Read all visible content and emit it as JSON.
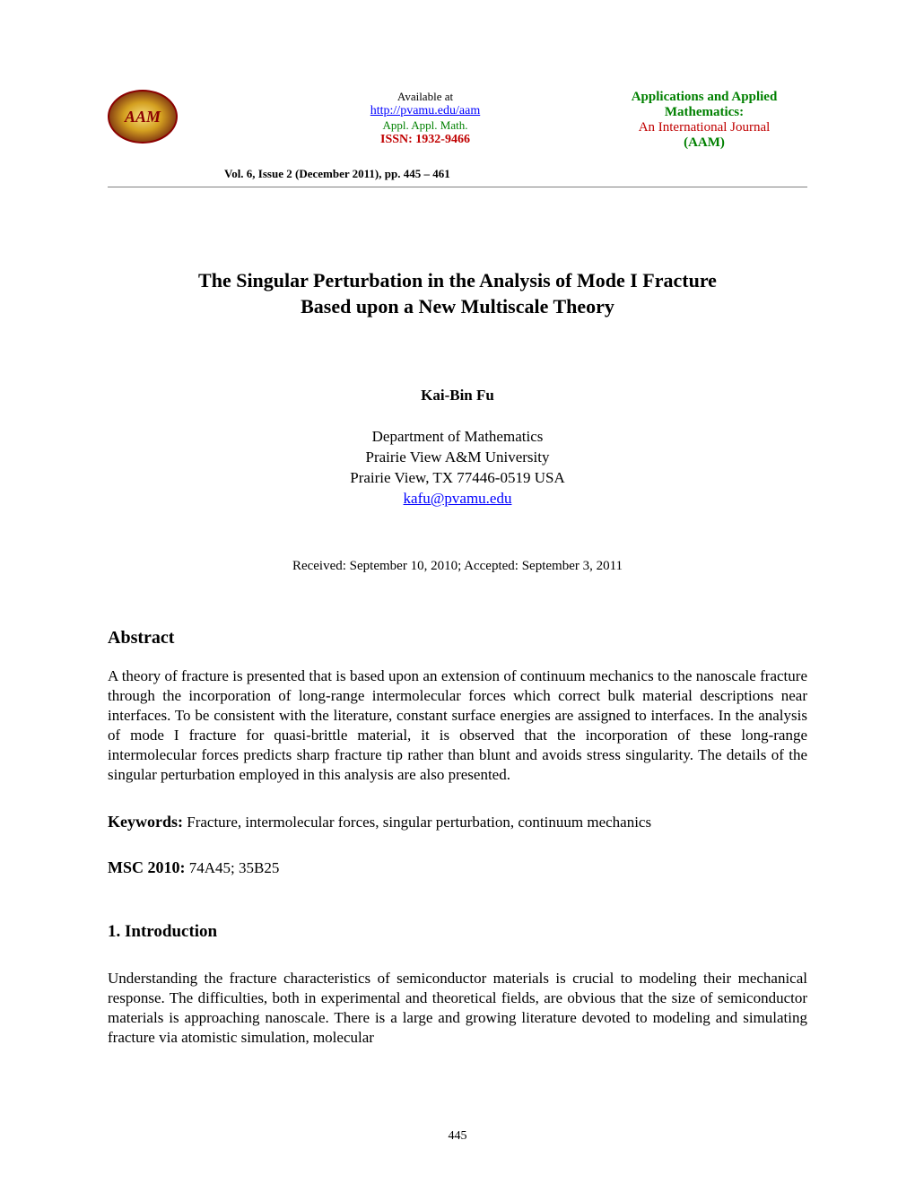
{
  "header": {
    "logo_text": "AAM",
    "available_label": "Available at",
    "url": "http://pvamu.edu/aam",
    "appl_text": "Appl. Appl. Math.",
    "issn": "ISSN: 1932-9466",
    "journal_name_line1": "Applications and Applied",
    "journal_name_line2": "Mathematics:",
    "journal_subtitle": "An International Journal",
    "journal_abbrev": "(AAM)",
    "volume_info": "Vol. 6, Issue 2 (December 2011),  pp. 445 –  461"
  },
  "title": {
    "line1": "The Singular Perturbation in the Analysis of Mode I Fracture",
    "line2": "Based upon a New Multiscale Theory"
  },
  "author": {
    "name": "Kai-Bin Fu",
    "dept": "Department of Mathematics",
    "university": "Prairie View A&M University",
    "address": "Prairie View, TX 77446-0519 USA",
    "email": "kafu@pvamu.edu"
  },
  "dates": "Received: September 10, 2010; Accepted: September 3, 2011",
  "abstract": {
    "heading": "Abstract",
    "text": "A theory of fracture is presented that is based upon an extension of continuum mechanics to the nanoscale fracture through the incorporation of long-range intermolecular forces which correct bulk material descriptions near interfaces. To be consistent with the literature, constant surface energies are assigned to interfaces. In the analysis of mode I fracture for quasi-brittle material, it is observed that the incorporation of these long-range intermolecular forces predicts sharp fracture tip rather than blunt and avoids stress singularity. The details of the singular perturbation employed in this analysis are also presented."
  },
  "keywords": {
    "label": "Keywords:",
    "text": "  Fracture, intermolecular forces, singular perturbation, continuum mechanics"
  },
  "msc": {
    "label": "MSC 2010:",
    "text": "  74A45; 35B25"
  },
  "introduction": {
    "heading": "1.   Introduction",
    "text": "Understanding the fracture characteristics of semiconductor materials is crucial to modeling their mechanical response. The difficulties, both in experimental and theoretical fields, are obvious that the size of semiconductor materials is approaching nanoscale. There is a large and growing literature devoted to modeling and simulating fracture via atomistic simulation, molecular"
  },
  "page_number": "445"
}
